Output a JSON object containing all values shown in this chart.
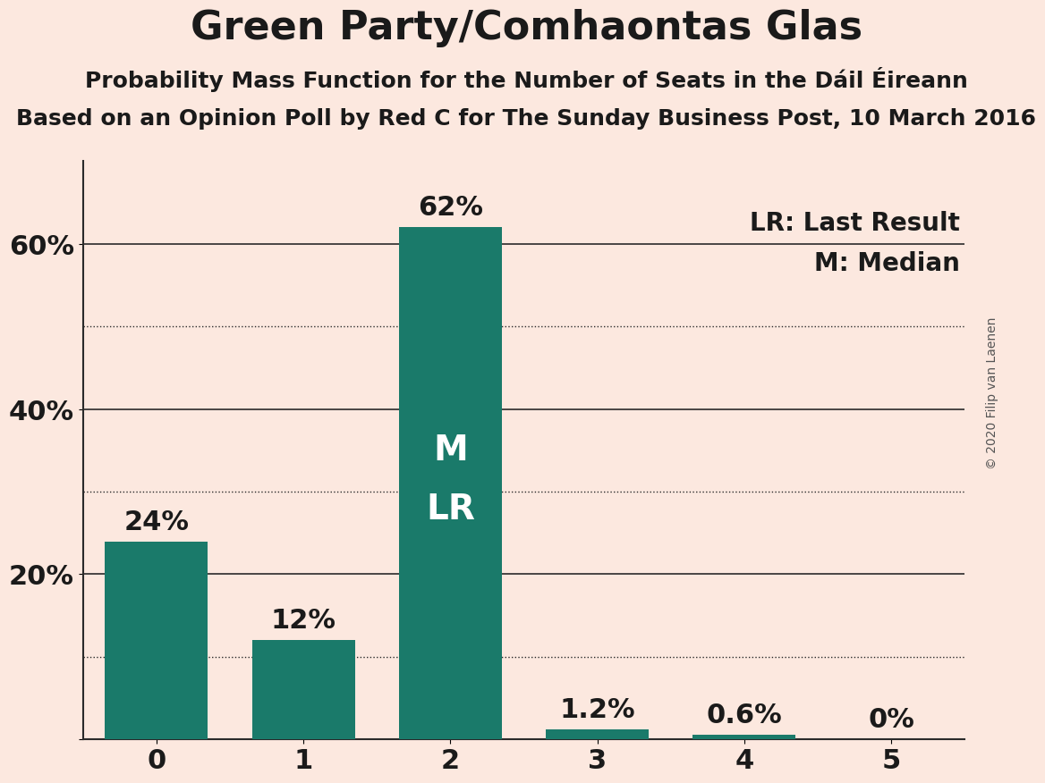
{
  "title": "Green Party/Comhaontas Glas",
  "subtitle1": "Probability Mass Function for the Number of Seats in the Dáil Éireann",
  "subtitle2": "Based on an Opinion Poll by Red C for The Sunday Business Post, 10 March 2016",
  "watermark": "© 2020 Filip van Laenen",
  "categories": [
    0,
    1,
    2,
    3,
    4,
    5
  ],
  "values": [
    24.0,
    12.0,
    62.0,
    1.2,
    0.6,
    0.0
  ],
  "bar_color": "#1a7a6a",
  "background_color": "#fce8df",
  "text_color": "#1a1a1a",
  "label_color_inside": "#ffffff",
  "label_color_outside": "#1a1a1a",
  "median_bar": 2,
  "last_result_bar": 2,
  "legend_lr": "LR: Last Result",
  "legend_m": "M: Median",
  "yticks": [
    0,
    20,
    40,
    60
  ],
  "dotted_lines": [
    10,
    30,
    50
  ],
  "solid_lines": [
    20,
    40,
    60
  ],
  "ylim": [
    0,
    70
  ],
  "title_fontsize": 32,
  "subtitle_fontsize": 18,
  "bar_label_fontsize": 22,
  "axis_fontsize": 22,
  "legend_fontsize": 20,
  "inside_label_fontsize": 28,
  "watermark_fontsize": 10
}
